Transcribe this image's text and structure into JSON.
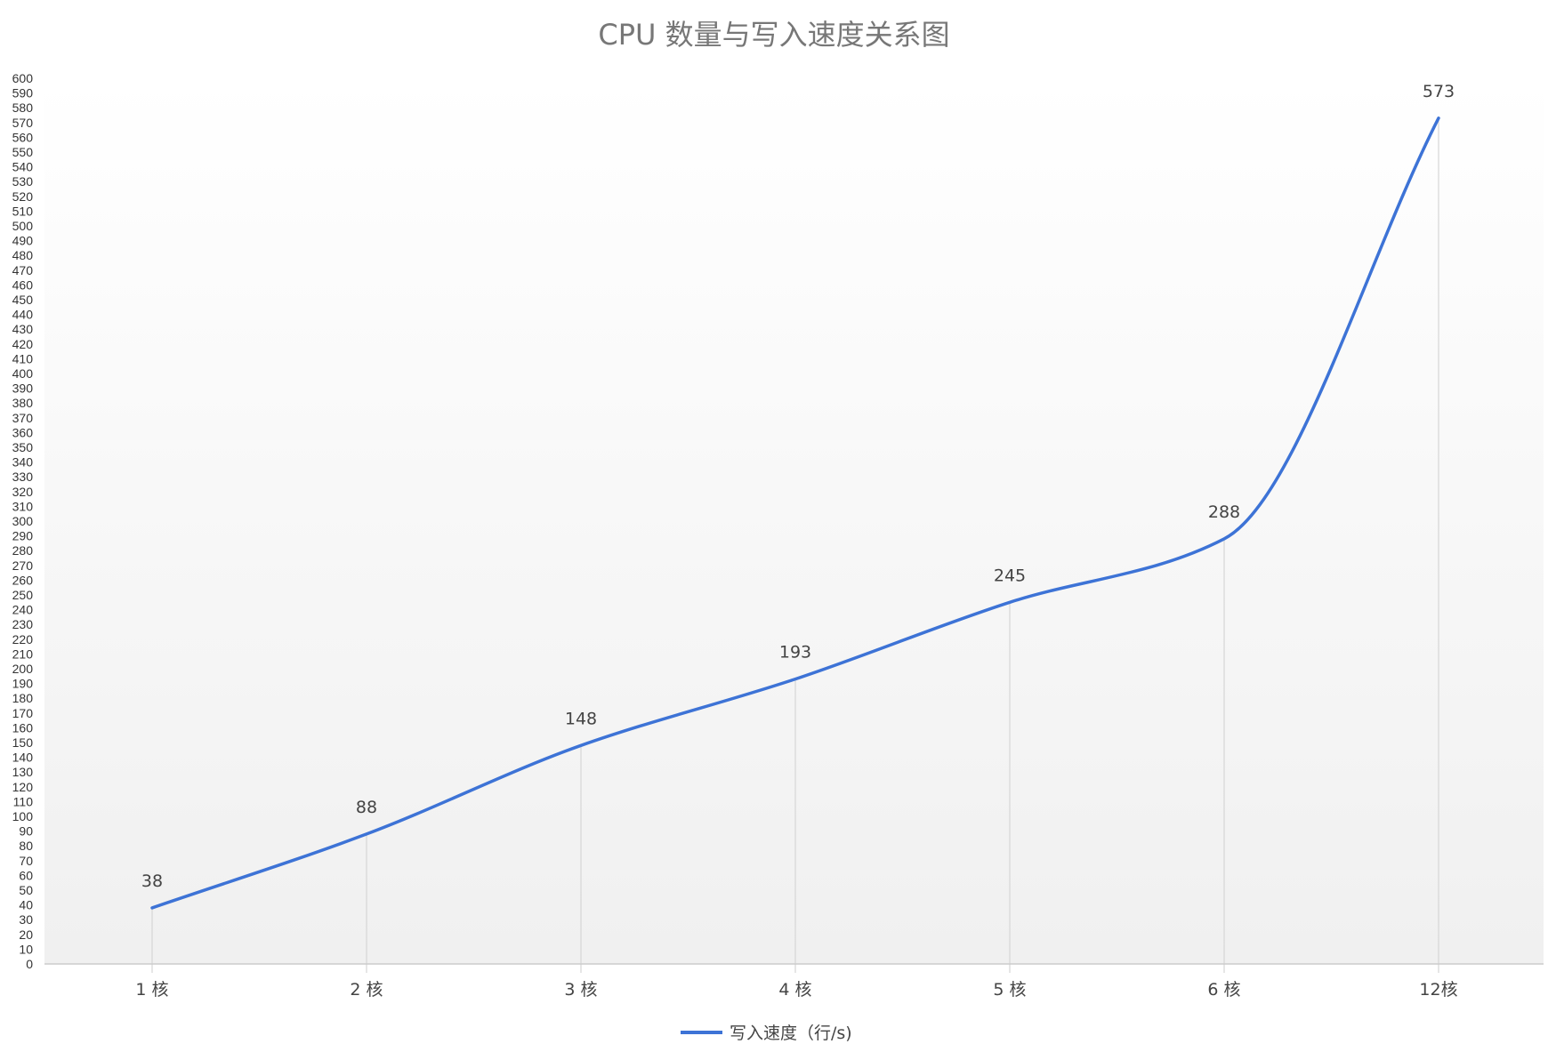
{
  "chart_data": {
    "type": "line",
    "title": "CPU 数量与写入速度关系图",
    "categories": [
      "1 核",
      "2 核",
      "3 核",
      "4 核",
      "5 核",
      "6 核",
      "12核"
    ],
    "series": [
      {
        "name": "写入速度（行/s)",
        "values": [
          38,
          88,
          148,
          193,
          245,
          288,
          573
        ],
        "color": "#3d73d6"
      }
    ],
    "ylim": [
      0,
      600
    ],
    "y_tick_step": 10,
    "data_labels": true,
    "smooth": true,
    "grid": "vertical-drop-lines",
    "legend_position": "bottom-center",
    "colors": {
      "line": "#3d73d6",
      "drop_line": "#d6d6d6",
      "axis": "#cccccc",
      "background_top": "#ffffff",
      "background_bottom": "#f0f0f0"
    }
  }
}
